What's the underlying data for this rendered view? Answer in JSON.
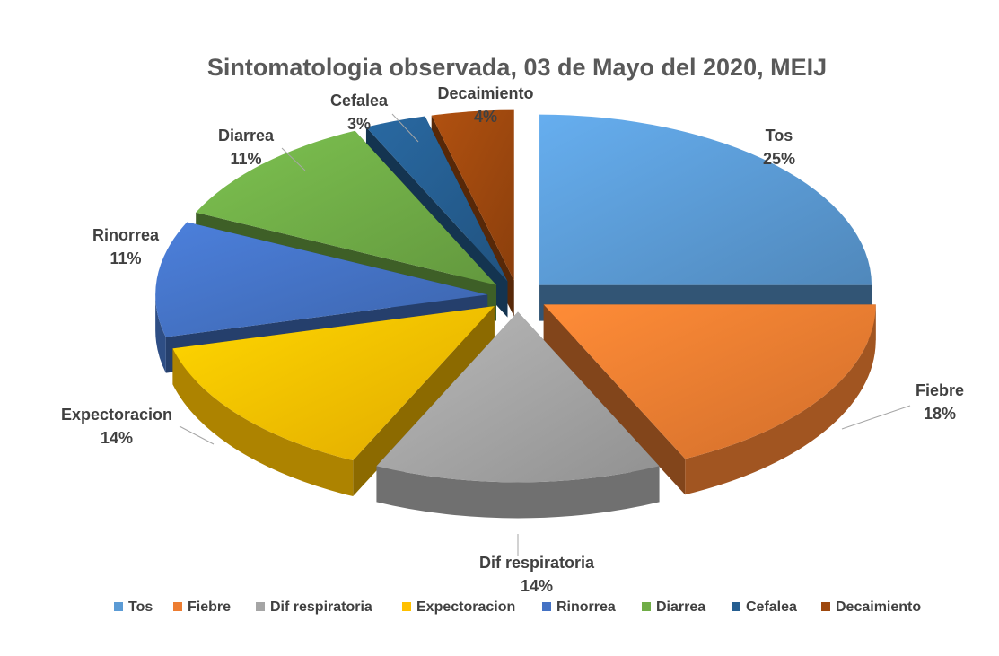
{
  "chart_data": {
    "type": "pie",
    "title": "Sintomatologia observada,  03 de Mayo del 2020, MEIJ",
    "slices": [
      {
        "label": "Tos",
        "value": 25,
        "display": "25%",
        "color": "#5B9BD5"
      },
      {
        "label": "Fiebre",
        "value": 18,
        "display": "18%",
        "color": "#ED7D31"
      },
      {
        "label": "Dif respiratoria",
        "value": 14,
        "display": "14%",
        "color": "#A5A5A5"
      },
      {
        "label": "Expectoracion",
        "value": 14,
        "display": "14%",
        "color": "#FFC000"
      },
      {
        "label": "Rinorrea",
        "value": 11,
        "display": "11%",
        "color": "#4472C4"
      },
      {
        "label": "Diarrea",
        "value": 11,
        "display": "11%",
        "color": "#70AD47"
      },
      {
        "label": "Cefalea",
        "value": 3,
        "display": "3%",
        "color": "#255E91"
      },
      {
        "label": "Decaimiento",
        "value": 4,
        "display": "4%",
        "color": "#9E480E"
      }
    ],
    "legend_position": "bottom",
    "style": "3d-exploded"
  }
}
